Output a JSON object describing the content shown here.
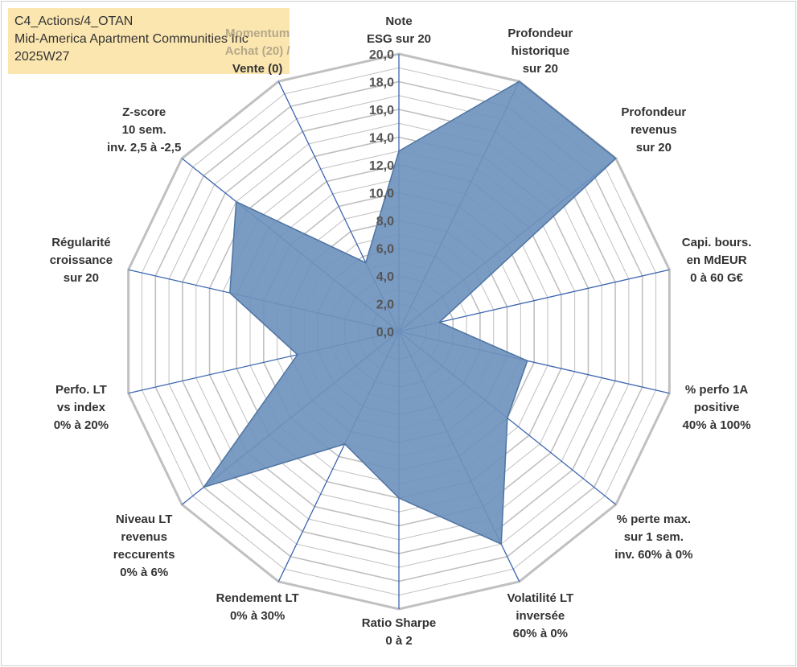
{
  "header": {
    "line1": "C4_Actions/4_OTAN",
    "line2": "Mid-America Apartment Communities Inc",
    "line3": "2025W27"
  },
  "chart_data": {
    "type": "radar",
    "title": "",
    "rlim": [
      0,
      20
    ],
    "ticks": [
      "0,0",
      "2,0",
      "4,0",
      "6,0",
      "8,0",
      "10,0",
      "12,0",
      "14,0",
      "16,0",
      "18,0",
      "20,0"
    ],
    "grid": true,
    "axes": [
      {
        "label": [
          "Note",
          "ESG sur 20"
        ],
        "value": 13.0
      },
      {
        "label": [
          "Profondeur",
          "historique",
          "sur 20"
        ],
        "value": 20.0
      },
      {
        "label": [
          "Profondeur",
          "revenus",
          "sur 20"
        ],
        "value": 20.0
      },
      {
        "label": [
          "Capi. bours.",
          "en MdEUR",
          "0 à 60 G€"
        ],
        "value": 3.0
      },
      {
        "label": [
          "% perfo 1A",
          "positive",
          "40% à 100%"
        ],
        "value": 9.5
      },
      {
        "label": [
          "% perte max.",
          "sur 1 sem.",
          "inv. 60% à 0%"
        ],
        "value": 10.0
      },
      {
        "label": [
          "Volatilité LT",
          "inversée",
          "60% à 0%"
        ],
        "value": 17.0
      },
      {
        "label": [
          "Ratio Sharpe",
          "0 à 2"
        ],
        "value": 12.0
      },
      {
        "label": [
          "Rendement LT",
          "0% à 30%"
        ],
        "value": 9.0
      },
      {
        "label": [
          "Niveau LT",
          "revenus",
          "reccurents",
          "0% à 6%"
        ],
        "value": 18.0
      },
      {
        "label": [
          "Perfo. LT",
          "vs index",
          "0% à 20%"
        ],
        "value": 7.5
      },
      {
        "label": [
          "Régularité",
          "croissance",
          "sur 20"
        ],
        "value": 12.5
      },
      {
        "label": [
          "Z-score",
          "10 sem.",
          "inv. 2,5 à -2,5"
        ],
        "value": 15.0
      },
      {
        "label": [
          "Momentum",
          "Achat (20) /",
          "Vente (0)"
        ],
        "value": 5.5
      }
    ],
    "series": [
      {
        "values": [
          13.0,
          20.0,
          20.0,
          3.0,
          9.5,
          10.0,
          17.0,
          12.0,
          9.0,
          18.0,
          7.5,
          12.5,
          15.0,
          5.5
        ]
      }
    ],
    "colors": {
      "fill": "#6f93bd",
      "stroke": "#4f74a3",
      "spoke": "#3c66b0",
      "grid": "#c0c0c0"
    }
  }
}
